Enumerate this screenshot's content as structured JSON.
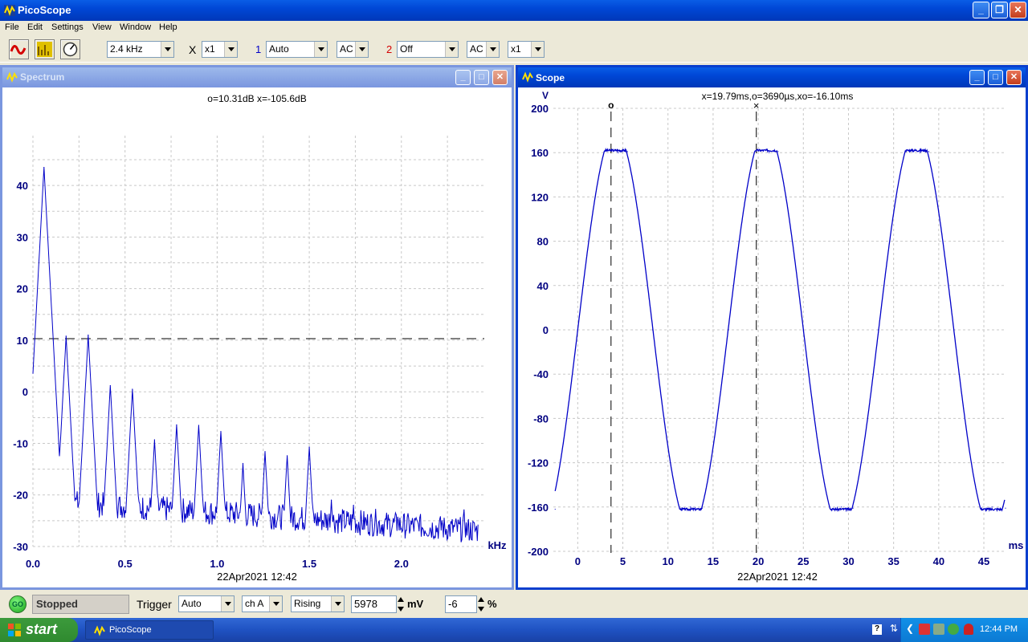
{
  "app": {
    "title": "PicoScope"
  },
  "menu": [
    "File",
    "Edit",
    "Settings",
    "View",
    "Window",
    "Help"
  ],
  "toolbar": {
    "timebase": "2.4 kHz",
    "x_mult_label": "X",
    "x_mult": "x1",
    "ch1_label": "1",
    "ch1_range": "Auto",
    "ch1_coupling": "AC",
    "ch2_label": "2",
    "ch2_range": "Off",
    "ch2_coupling": "AC",
    "ch2_mult": "x1"
  },
  "spectrum": {
    "title": "Spectrum",
    "readout": "o=10.31dB  x=-105.6dB",
    "x_unit": "kHz",
    "timestamp": "22Apr2021  12:42"
  },
  "scope": {
    "title": "Scope",
    "readout": "x=19.79ms,o=3690µs,xo=-16.10ms",
    "y_unit": "V",
    "x_unit": "ms",
    "cursor_o_label": "o",
    "cursor_x_label": "×",
    "timestamp": "22Apr2021  12:42"
  },
  "statusbar": {
    "go_label": "GO",
    "state": "Stopped",
    "trigger_label": "Trigger",
    "trigger_mode": "Auto",
    "trigger_channel": "ch A",
    "trigger_edge": "Rising",
    "trigger_level": "5978",
    "level_unit": "mV",
    "pretrigger": "-6",
    "pretrigger_unit": "%"
  },
  "taskbar": {
    "start": "start",
    "task": "PicoScope",
    "clock": "12:44 PM"
  },
  "colors": {
    "trace": "#0000c8",
    "axis_text": "#000080",
    "titlebar": "#0047d6"
  },
  "chart_data": [
    {
      "type": "line",
      "name": "Spectrum",
      "xlabel": "kHz",
      "ylabel": "",
      "xlim": [
        0,
        2.45
      ],
      "ylim": [
        -30,
        45
      ],
      "x_ticks": [
        "0.0",
        "0.5",
        "1.0",
        "1.5",
        "2.0"
      ],
      "y_ticks": [
        "40",
        "30",
        "20",
        "10",
        "0",
        "-10",
        "-20",
        "-30"
      ],
      "grid": true,
      "cursor_hline_y": 10.31,
      "peaks": [
        {
          "x": 0.06,
          "y": 43.5
        },
        {
          "x": 0.18,
          "y": 10.8
        },
        {
          "x": 0.3,
          "y": 11.0
        },
        {
          "x": 0.42,
          "y": 1.2
        },
        {
          "x": 0.54,
          "y": 0.5
        },
        {
          "x": 0.66,
          "y": -9.3
        },
        {
          "x": 0.78,
          "y": -6.4
        },
        {
          "x": 0.9,
          "y": -6.5
        },
        {
          "x": 1.02,
          "y": -7.7
        },
        {
          "x": 1.14,
          "y": -13.9
        },
        {
          "x": 1.26,
          "y": -11.6
        },
        {
          "x": 1.38,
          "y": -12.4
        },
        {
          "x": 1.5,
          "y": -10.7
        },
        {
          "x": 1.62,
          "y": -21.0
        },
        {
          "x": 1.74,
          "y": -22.0
        },
        {
          "x": 1.86,
          "y": -22.8
        },
        {
          "x": 1.98,
          "y": -24.3
        },
        {
          "x": 2.1,
          "y": -24.4
        },
        {
          "x": 2.22,
          "y": -25.0
        },
        {
          "x": 2.34,
          "y": -22.9
        }
      ]
    },
    {
      "type": "line",
      "name": "Scope",
      "xlabel": "ms",
      "ylabel": "V",
      "xlim": [
        -2.7,
        47.4
      ],
      "ylim": [
        -200,
        200
      ],
      "x_ticks": [
        "0",
        "5",
        "10",
        "15",
        "20",
        "25",
        "30",
        "35",
        "40",
        "45"
      ],
      "y_ticks": [
        "200",
        "160",
        "120",
        "80",
        "40",
        "0",
        "-40",
        "-80",
        "-120",
        "-160",
        "-200"
      ],
      "grid": true,
      "cursor_o_x": 3.69,
      "cursor_x_x": 19.79,
      "signal": {
        "period_ms": 16.67,
        "amplitude_v": 162,
        "zero_crossing_ms": 0,
        "clipped": true
      },
      "samples": [
        {
          "x": -2.5,
          "y": -162
        },
        {
          "x": 0,
          "y": 0
        },
        {
          "x": 4.5,
          "y": 160
        },
        {
          "x": 5.5,
          "y": 161
        },
        {
          "x": 8.3,
          "y": 0
        },
        {
          "x": 12.5,
          "y": -160
        },
        {
          "x": 13.8,
          "y": -161
        },
        {
          "x": 16.7,
          "y": 0
        },
        {
          "x": 21.2,
          "y": 160
        },
        {
          "x": 22.2,
          "y": 161
        },
        {
          "x": 25.0,
          "y": 0
        },
        {
          "x": 29.2,
          "y": -160
        },
        {
          "x": 30.5,
          "y": -161
        },
        {
          "x": 33.3,
          "y": 0
        },
        {
          "x": 37.9,
          "y": 160
        },
        {
          "x": 38.9,
          "y": 161
        },
        {
          "x": 41.7,
          "y": 0
        },
        {
          "x": 45.9,
          "y": -160
        },
        {
          "x": 47.4,
          "y": -161
        }
      ]
    }
  ]
}
